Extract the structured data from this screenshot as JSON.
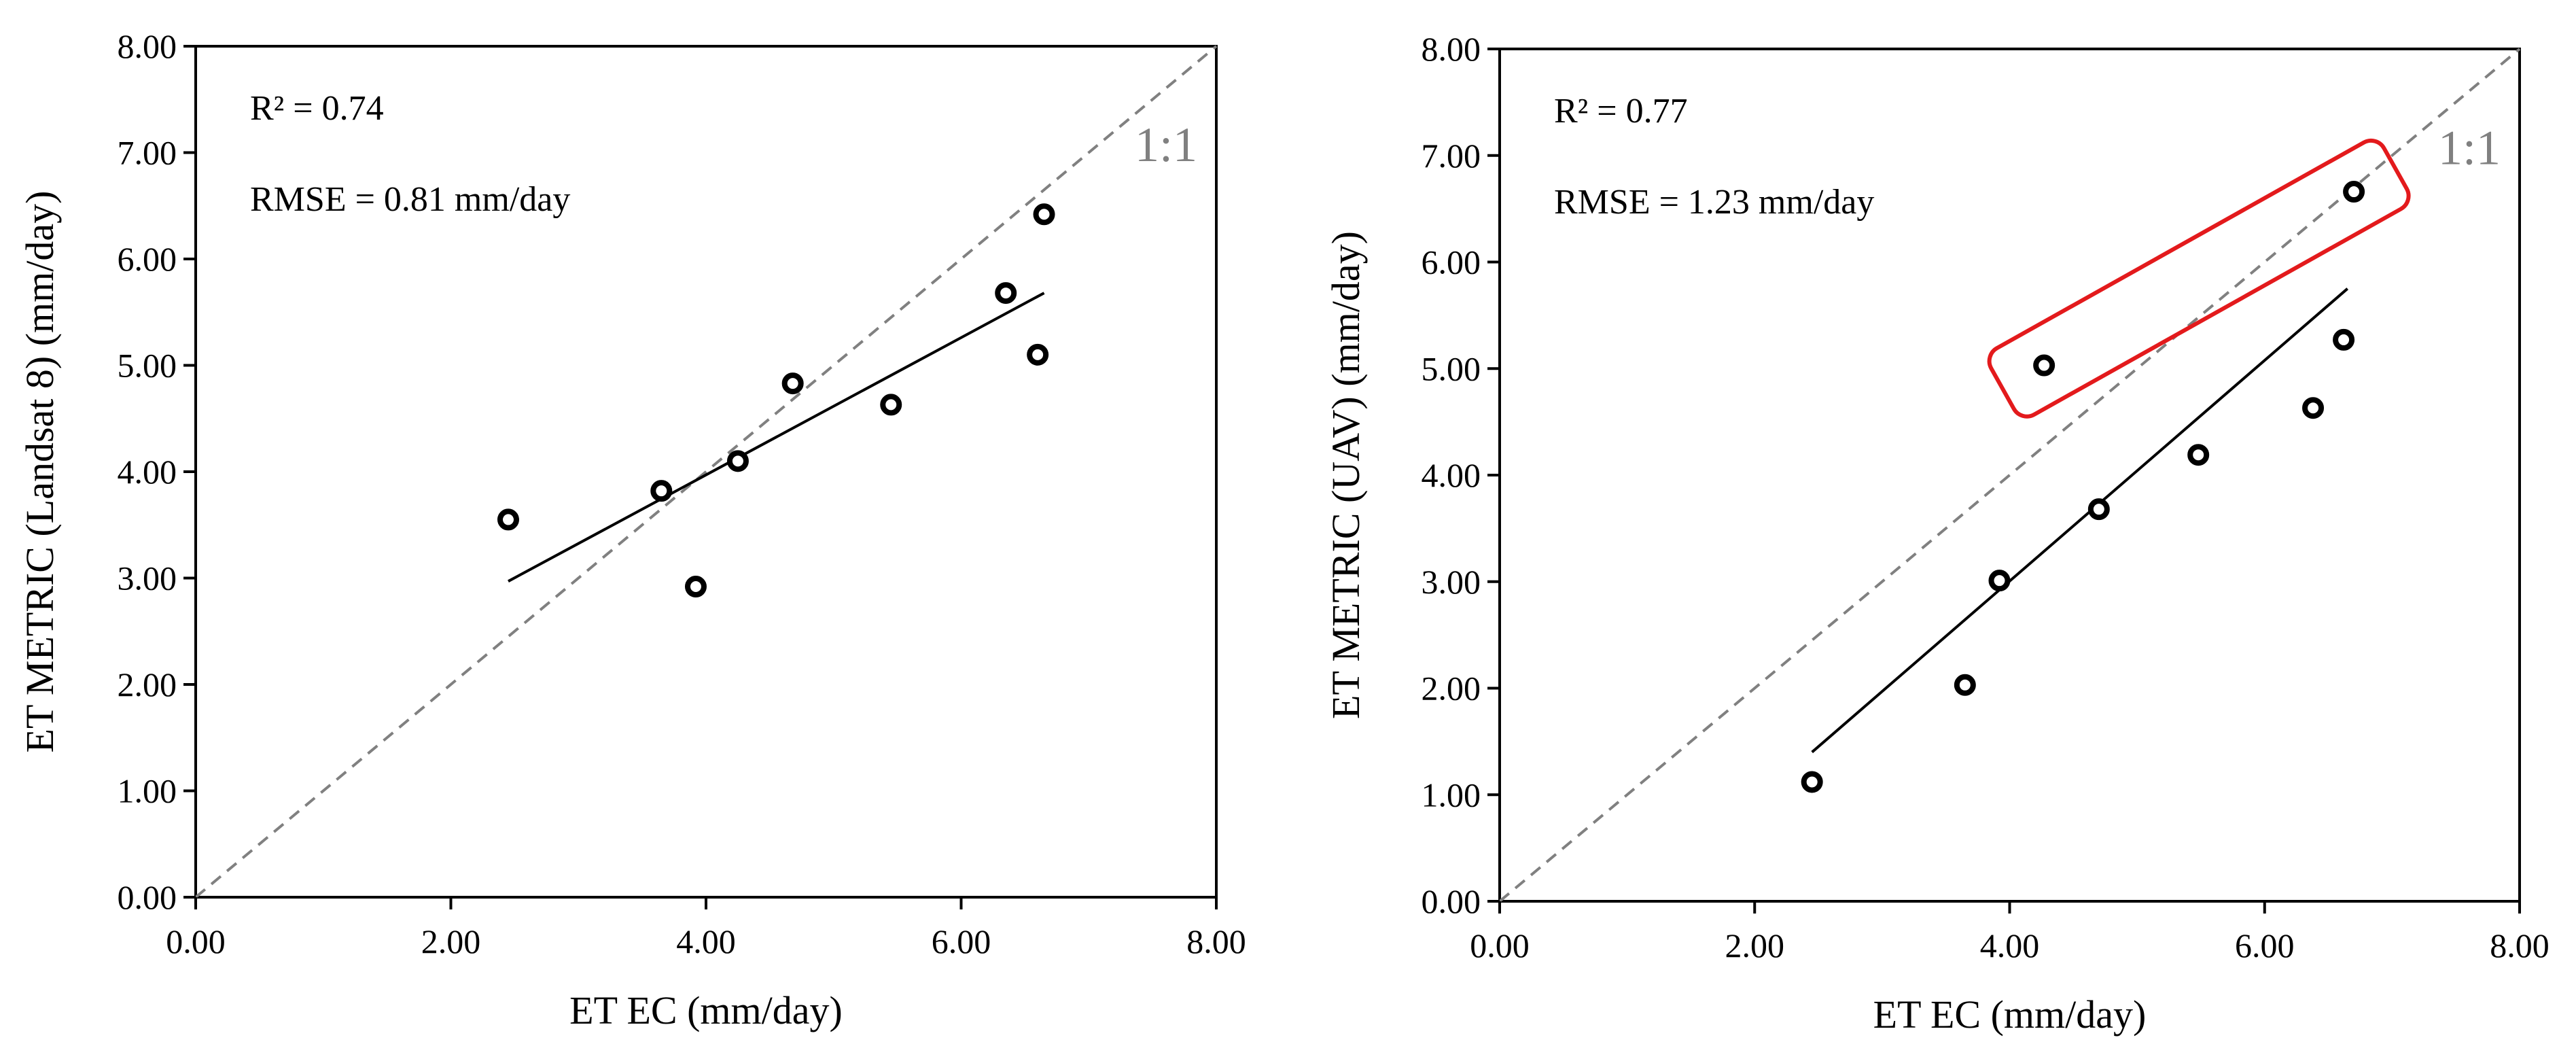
{
  "chart_data": [
    {
      "type": "scatter",
      "id": "landsat",
      "xlabel": "ET  EC (mm/day)",
      "ylabel": "ET  METRIC  (Landsat 8)  (mm/day)",
      "xlim": [
        0,
        8
      ],
      "ylim": [
        0,
        8
      ],
      "xticks": [
        "0.00",
        "2.00",
        "4.00",
        "6.00",
        "8.00"
      ],
      "yticks": [
        "0.00",
        "1.00",
        "2.00",
        "3.00",
        "4.00",
        "5.00",
        "6.00",
        "7.00",
        "8.00"
      ],
      "stats": [
        "R² = 0.74",
        "RMSE = 0.81 mm/day"
      ],
      "one_to_one_label": "1:1",
      "points": [
        {
          "x": 2.45,
          "y": 3.55
        },
        {
          "x": 3.65,
          "y": 3.82
        },
        {
          "x": 3.92,
          "y": 2.92
        },
        {
          "x": 4.25,
          "y": 4.1
        },
        {
          "x": 4.68,
          "y": 4.83
        },
        {
          "x": 5.45,
          "y": 4.63
        },
        {
          "x": 6.35,
          "y": 5.68
        },
        {
          "x": 6.6,
          "y": 5.1
        },
        {
          "x": 6.65,
          "y": 6.42
        }
      ],
      "fit": {
        "x": [
          2.45,
          6.65
        ],
        "y": [
          2.97,
          5.68
        ]
      },
      "highlight": null
    },
    {
      "type": "scatter",
      "id": "uav",
      "xlabel": "ET  EC (mm/day)",
      "ylabel": "ET  METRIC  (UAV)  (mm/day)",
      "xlim": [
        0,
        8
      ],
      "ylim": [
        0,
        8
      ],
      "xticks": [
        "0.00",
        "2.00",
        "4.00",
        "6.00",
        "8.00"
      ],
      "yticks": [
        "0.00",
        "1.00",
        "2.00",
        "3.00",
        "4.00",
        "5.00",
        "6.00",
        "7.00",
        "8.00"
      ],
      "stats": [
        "R² = 0.77",
        "RMSE = 1.23 mm/day"
      ],
      "one_to_one_label": "1:1",
      "points": [
        {
          "x": 2.45,
          "y": 1.12
        },
        {
          "x": 3.65,
          "y": 2.03
        },
        {
          "x": 3.92,
          "y": 3.01
        },
        {
          "x": 4.27,
          "y": 5.03
        },
        {
          "x": 4.7,
          "y": 3.68
        },
        {
          "x": 5.48,
          "y": 4.19
        },
        {
          "x": 6.38,
          "y": 4.63
        },
        {
          "x": 6.62,
          "y": 5.27
        },
        {
          "x": 6.7,
          "y": 6.66
        }
      ],
      "fit": {
        "x": [
          2.45,
          6.65
        ],
        "y": [
          1.4,
          5.75
        ]
      },
      "highlight": {
        "color": "#e31a1c",
        "points": [
          3,
          8
        ]
      }
    }
  ]
}
